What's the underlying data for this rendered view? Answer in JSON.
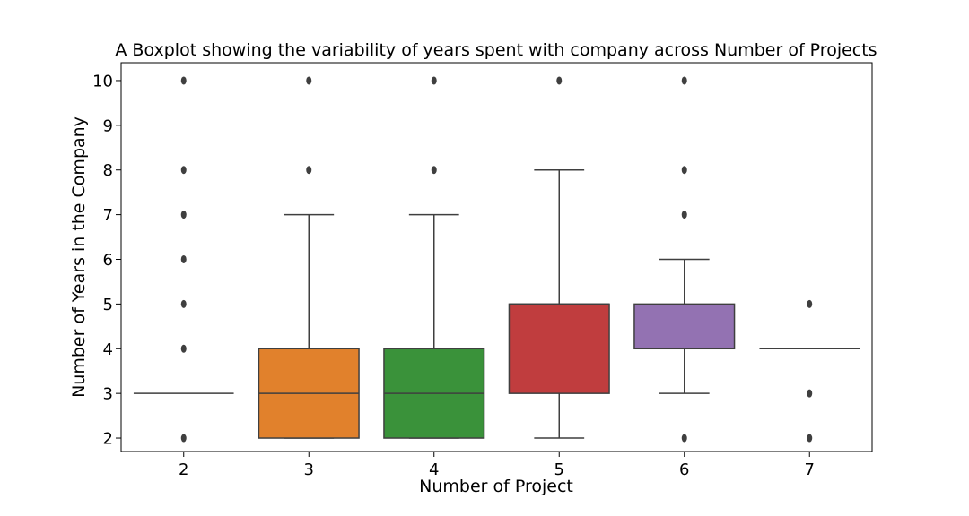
{
  "chart_data": {
    "type": "boxplot",
    "title": "A Boxplot showing the variability of years spent with company across Number of Projects",
    "xlabel": "Number of Project",
    "ylabel": "Number of Years in the Company",
    "categories": [
      "2",
      "3",
      "4",
      "5",
      "6",
      "7"
    ],
    "yticks": [
      2,
      3,
      4,
      5,
      6,
      7,
      8,
      9,
      10
    ],
    "ylim": [
      1.7,
      10.4
    ],
    "grid": false,
    "boxes": [
      {
        "category": "2",
        "q1": 3,
        "median": 3,
        "q3": 3,
        "whisker_low": 3,
        "whisker_high": 3,
        "outliers": [
          2,
          4,
          5,
          6,
          7,
          8,
          10
        ],
        "color": "#1f77b4"
      },
      {
        "category": "3",
        "q1": 2,
        "median": 3,
        "q3": 4,
        "whisker_low": 2,
        "whisker_high": 7,
        "outliers": [
          8,
          10
        ],
        "color": "#e1812c"
      },
      {
        "category": "4",
        "q1": 2,
        "median": 3,
        "q3": 4,
        "whisker_low": 2,
        "whisker_high": 7,
        "outliers": [
          8,
          10
        ],
        "color": "#3a923a"
      },
      {
        "category": "5",
        "q1": 3,
        "median": 5,
        "q3": 5,
        "whisker_low": 2,
        "whisker_high": 8,
        "outliers": [
          10
        ],
        "color": "#c03d3e"
      },
      {
        "category": "6",
        "q1": 4,
        "median": 4,
        "q3": 5,
        "whisker_low": 3,
        "whisker_high": 6,
        "outliers": [
          2,
          7,
          8,
          10
        ],
        "color": "#9372b2"
      },
      {
        "category": "7",
        "q1": 4,
        "median": 4,
        "q3": 4,
        "whisker_low": 4,
        "whisker_high": 4,
        "outliers": [
          2,
          3,
          5
        ],
        "color": "#845b53"
      }
    ]
  }
}
